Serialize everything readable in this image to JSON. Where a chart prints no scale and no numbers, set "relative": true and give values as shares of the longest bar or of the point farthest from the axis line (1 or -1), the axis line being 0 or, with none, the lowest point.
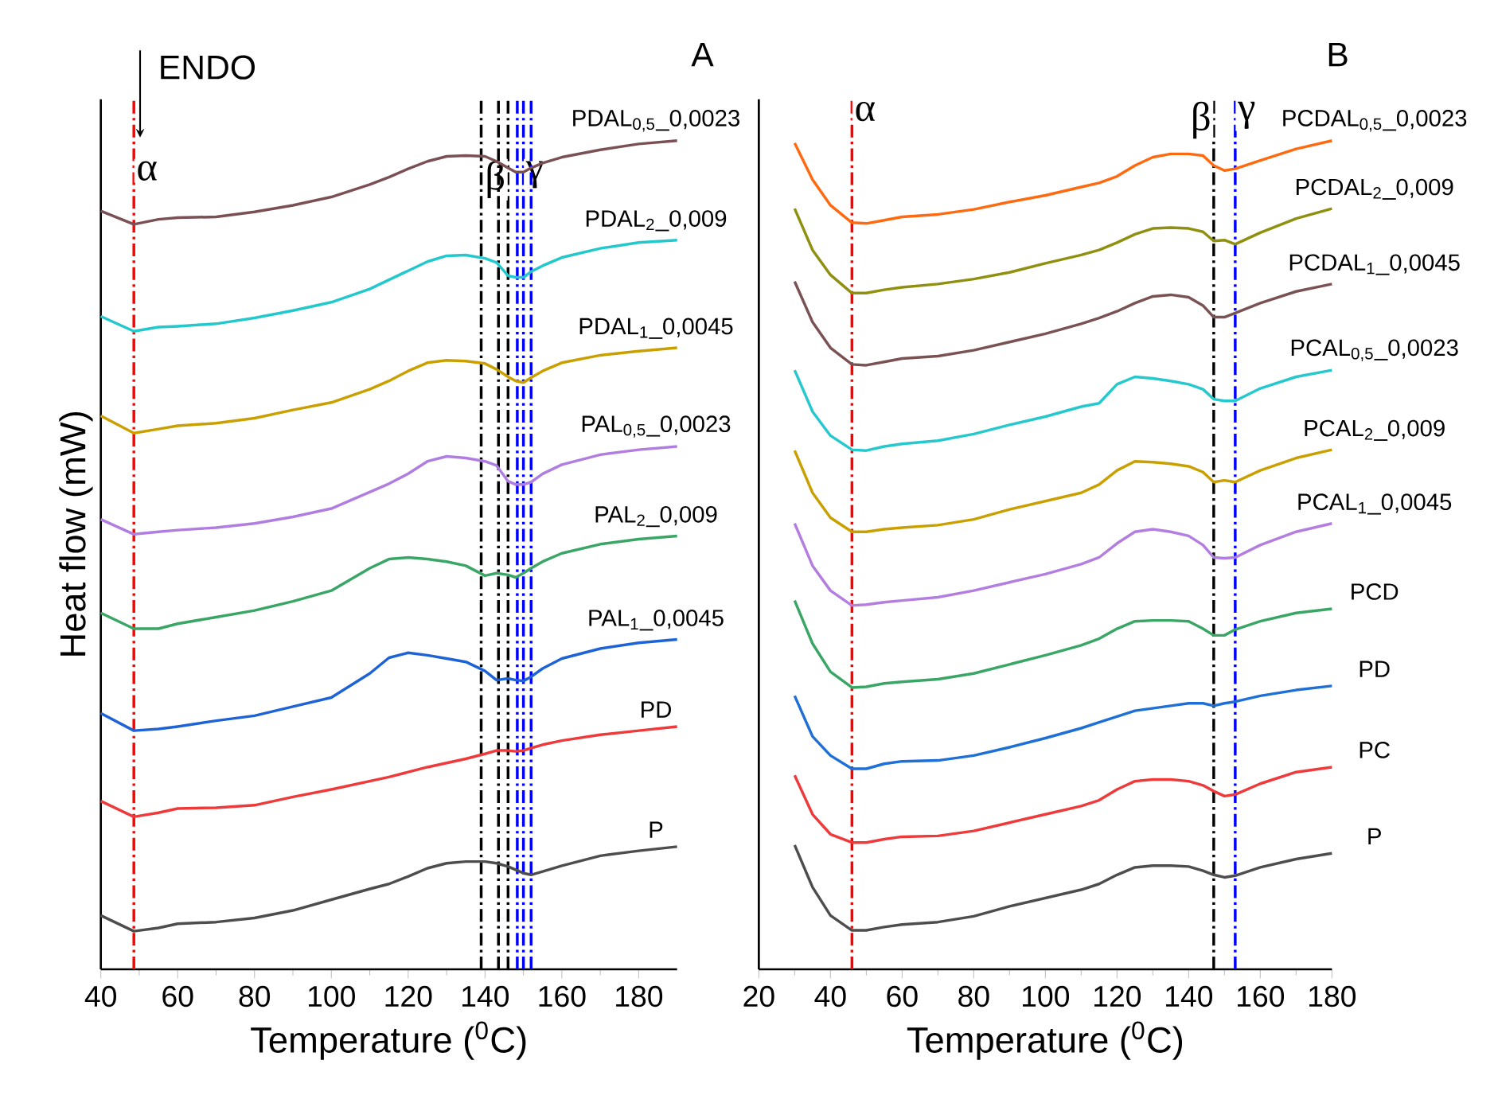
{
  "chart_data": [
    {
      "type": "line",
      "relative": true,
      "title": "A",
      "xlabel": "Temperature ($^{0}$C)",
      "ylabel": "Heat flow (mW)",
      "xlim": [
        40,
        190
      ],
      "xticks": [
        40,
        60,
        80,
        100,
        120,
        140,
        160,
        180
      ],
      "legend": false,
      "annotations": [
        "ENDO"
      ],
      "x": [
        40,
        48.6,
        55,
        60,
        70,
        80,
        90,
        100,
        110,
        115,
        120,
        125,
        130,
        135,
        140,
        143,
        146,
        148,
        150,
        152,
        155,
        160,
        170,
        180,
        190
      ],
      "series": [
        {
          "name": "PDAL$_{0,5}$_0,0023",
          "color": "#7b5055",
          "values": [
            0.915,
            0.899,
            0.905,
            0.907,
            0.908,
            0.914,
            0.922,
            0.932,
            0.947,
            0.956,
            0.966,
            0.975,
            0.981,
            0.982,
            0.981,
            0.975,
            0.967,
            0.962,
            0.962,
            0.967,
            0.973,
            0.98,
            0.989,
            0.996,
            1.0
          ]
        },
        {
          "name": "PDAL$_{2}$_0,009",
          "color": "#22c8cc",
          "values": [
            0.788,
            0.77,
            0.775,
            0.776,
            0.779,
            0.786,
            0.795,
            0.805,
            0.821,
            0.832,
            0.843,
            0.854,
            0.861,
            0.862,
            0.858,
            0.853,
            0.837,
            0.835,
            0.835,
            0.842,
            0.849,
            0.859,
            0.87,
            0.877,
            0.88
          ]
        },
        {
          "name": "PDAL$_{1}$_0,0045",
          "color": "#c9a000",
          "values": [
            0.668,
            0.647,
            0.652,
            0.656,
            0.659,
            0.665,
            0.675,
            0.684,
            0.7,
            0.71,
            0.722,
            0.732,
            0.735,
            0.734,
            0.731,
            0.724,
            0.715,
            0.71,
            0.708,
            0.714,
            0.722,
            0.732,
            0.741,
            0.746,
            0.75
          ]
        },
        {
          "name": "PAL$_{0,5}$_0,0023",
          "color": "#b07ee0",
          "values": [
            0.543,
            0.525,
            0.528,
            0.53,
            0.533,
            0.538,
            0.546,
            0.556,
            0.576,
            0.586,
            0.598,
            0.613,
            0.619,
            0.617,
            0.613,
            0.608,
            0.589,
            0.585,
            0.585,
            0.588,
            0.598,
            0.609,
            0.621,
            0.627,
            0.631
          ]
        },
        {
          "name": "PAL$_{2}$_0,009",
          "color": "#3aa665",
          "values": [
            0.43,
            0.411,
            0.411,
            0.417,
            0.425,
            0.433,
            0.444,
            0.457,
            0.484,
            0.495,
            0.497,
            0.495,
            0.492,
            0.487,
            0.475,
            0.478,
            0.476,
            0.473,
            0.478,
            0.484,
            0.492,
            0.502,
            0.513,
            0.519,
            0.523
          ]
        },
        {
          "name": "PAL$_{1}$_0,0045",
          "color": "#1e63d6",
          "values": [
            0.309,
            0.288,
            0.29,
            0.293,
            0.3,
            0.306,
            0.317,
            0.328,
            0.357,
            0.376,
            0.382,
            0.379,
            0.375,
            0.371,
            0.36,
            0.349,
            0.351,
            0.349,
            0.348,
            0.353,
            0.363,
            0.375,
            0.387,
            0.394,
            0.398
          ]
        },
        {
          "name": "PD",
          "color": "#ee3a3a",
          "values": [
            0.203,
            0.184,
            0.189,
            0.194,
            0.195,
            0.198,
            0.208,
            0.217,
            0.227,
            0.232,
            0.238,
            0.244,
            0.249,
            0.254,
            0.26,
            0.264,
            0.264,
            0.263,
            0.264,
            0.267,
            0.271,
            0.276,
            0.283,
            0.288,
            0.293
          ]
        },
        {
          "name": "P",
          "color": "#4d4d4d",
          "values": [
            0.065,
            0.046,
            0.05,
            0.055,
            0.057,
            0.062,
            0.071,
            0.084,
            0.097,
            0.103,
            0.112,
            0.122,
            0.128,
            0.13,
            0.13,
            0.128,
            0.124,
            0.12,
            0.116,
            0.114,
            0.118,
            0.125,
            0.137,
            0.143,
            0.148
          ]
        }
      ],
      "ref_lines": [
        {
          "axis": "x",
          "value": 48.6,
          "label": "α",
          "color": "#ff0000",
          "line_style": "dashed"
        },
        {
          "axis": "x",
          "value": 146,
          "label": "β",
          "color": "#000000",
          "line_style": "dashed"
        },
        {
          "axis": "x",
          "value": 150,
          "label": "γ",
          "color": "#0000ff",
          "line_style": "dashed"
        },
        {
          "axis": "x",
          "value": 139,
          "color": "#000000",
          "line_style": "dashed"
        },
        {
          "axis": "x",
          "value": 143.5,
          "color": "#000000",
          "line_style": "dashed"
        },
        {
          "axis": "x",
          "value": 148.4,
          "color": "#0000ff",
          "line_style": "dashed"
        },
        {
          "axis": "x",
          "value": 152,
          "color": "#0000ff",
          "line_style": "dashed"
        }
      ]
    },
    {
      "type": "line",
      "relative": true,
      "title": "B",
      "xlabel": "Temperature ($^{0}$C)",
      "xlim": [
        20,
        180
      ],
      "xticks": [
        20,
        40,
        60,
        80,
        100,
        120,
        140,
        160,
        180
      ],
      "legend": false,
      "x": [
        30,
        35,
        40,
        46,
        50,
        55,
        60,
        70,
        80,
        90,
        100,
        110,
        115,
        120,
        125,
        130,
        135,
        140,
        144,
        147,
        150,
        153,
        160,
        170,
        180
      ],
      "series": [
        {
          "name": "PCDAL$_{0,5}$_0,0023",
          "color": "#ff6a10",
          "values": [
            0.997,
            0.953,
            0.922,
            0.901,
            0.9,
            0.904,
            0.908,
            0.911,
            0.917,
            0.926,
            0.934,
            0.944,
            0.949,
            0.957,
            0.97,
            0.98,
            0.984,
            0.984,
            0.982,
            0.97,
            0.964,
            0.966,
            0.976,
            0.99,
            1.0
          ]
        },
        {
          "name": "PCDAL$_{2}$_0,009",
          "color": "#8f8f10",
          "values": [
            0.918,
            0.868,
            0.838,
            0.816,
            0.816,
            0.82,
            0.823,
            0.827,
            0.833,
            0.841,
            0.852,
            0.862,
            0.868,
            0.877,
            0.887,
            0.894,
            0.895,
            0.894,
            0.89,
            0.879,
            0.88,
            0.875,
            0.889,
            0.906,
            0.918
          ]
        },
        {
          "name": "PCDAL$_{1}$_0,0045",
          "color": "#7a5253",
          "values": [
            0.83,
            0.781,
            0.75,
            0.73,
            0.729,
            0.733,
            0.737,
            0.74,
            0.747,
            0.757,
            0.767,
            0.779,
            0.786,
            0.794,
            0.804,
            0.812,
            0.814,
            0.811,
            0.801,
            0.787,
            0.787,
            0.792,
            0.804,
            0.818,
            0.827
          ]
        },
        {
          "name": "PCAL$_{0,5}$_0,0023",
          "color": "#25c8cc",
          "values": [
            0.723,
            0.673,
            0.644,
            0.627,
            0.626,
            0.631,
            0.634,
            0.638,
            0.646,
            0.657,
            0.667,
            0.679,
            0.683,
            0.706,
            0.715,
            0.713,
            0.71,
            0.706,
            0.7,
            0.688,
            0.686,
            0.686,
            0.701,
            0.715,
            0.723
          ]
        },
        {
          "name": "PCAL$_{2}$_0,009",
          "color": "#c9a000",
          "values": [
            0.626,
            0.575,
            0.545,
            0.528,
            0.528,
            0.531,
            0.533,
            0.536,
            0.543,
            0.555,
            0.565,
            0.575,
            0.585,
            0.602,
            0.613,
            0.612,
            0.61,
            0.607,
            0.6,
            0.588,
            0.59,
            0.588,
            0.602,
            0.617,
            0.627
          ]
        },
        {
          "name": "PCAL$_{1}$_0,0045",
          "color": "#b37ee0",
          "values": [
            0.538,
            0.487,
            0.457,
            0.439,
            0.44,
            0.443,
            0.445,
            0.449,
            0.457,
            0.467,
            0.477,
            0.489,
            0.497,
            0.514,
            0.528,
            0.531,
            0.528,
            0.523,
            0.512,
            0.497,
            0.496,
            0.497,
            0.512,
            0.528,
            0.538
          ]
        },
        {
          "name": "PCD",
          "color": "#3aa665",
          "values": [
            0.445,
            0.393,
            0.359,
            0.34,
            0.341,
            0.345,
            0.347,
            0.35,
            0.357,
            0.368,
            0.379,
            0.391,
            0.399,
            0.411,
            0.42,
            0.421,
            0.421,
            0.42,
            0.411,
            0.403,
            0.403,
            0.41,
            0.42,
            0.43,
            0.435
          ]
        },
        {
          "name": "PD",
          "color": "#1e6fd6",
          "values": [
            0.33,
            0.281,
            0.258,
            0.242,
            0.242,
            0.248,
            0.251,
            0.252,
            0.258,
            0.268,
            0.279,
            0.291,
            0.298,
            0.305,
            0.312,
            0.315,
            0.318,
            0.321,
            0.321,
            0.318,
            0.321,
            0.323,
            0.33,
            0.337,
            0.342
          ]
        },
        {
          "name": "PC",
          "color": "#ee3a3a",
          "values": [
            0.234,
            0.187,
            0.163,
            0.153,
            0.153,
            0.157,
            0.16,
            0.161,
            0.167,
            0.177,
            0.187,
            0.197,
            0.204,
            0.217,
            0.227,
            0.229,
            0.229,
            0.227,
            0.222,
            0.215,
            0.209,
            0.211,
            0.224,
            0.238,
            0.244
          ]
        },
        {
          "name": "P",
          "color": "#4d4d4d",
          "values": [
            0.15,
            0.099,
            0.065,
            0.047,
            0.047,
            0.051,
            0.054,
            0.057,
            0.064,
            0.076,
            0.086,
            0.096,
            0.103,
            0.114,
            0.123,
            0.125,
            0.125,
            0.124,
            0.119,
            0.114,
            0.111,
            0.113,
            0.123,
            0.133,
            0.14
          ]
        }
      ],
      "ref_lines": [
        {
          "axis": "x",
          "value": 46,
          "label": "α",
          "color": "#ff0000",
          "line_style": "dashed"
        },
        {
          "axis": "x",
          "value": 147,
          "label": "β",
          "color": "#000000",
          "line_style": "dashed"
        },
        {
          "axis": "x",
          "value": 153,
          "label": "γ",
          "color": "#0000ff",
          "line_style": "dashed"
        }
      ]
    }
  ]
}
